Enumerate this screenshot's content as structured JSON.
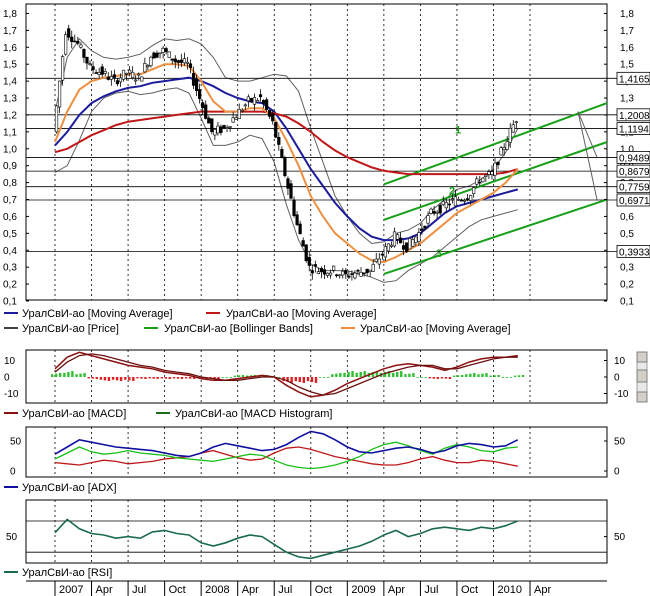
{
  "colors": {
    "price": "#000000",
    "ma_blue": "#1c1c9c",
    "ma_red": "#c01818",
    "ma_orange": "#ee9040",
    "bollinger": "#606060",
    "channel": "#18a018",
    "macd": "#8b1010",
    "macd_hist_pos": "#30c030",
    "macd_hist_neg": "#e02020",
    "adx": "#1010a0",
    "di_plus": "#18c018",
    "di_minus": "#c01818",
    "rsi": "#1a6b4a"
  },
  "x_axis": {
    "labels": [
      "2007",
      "Apr",
      "Jul",
      "Oct",
      "2008",
      "Apr",
      "Jul",
      "Oct",
      "2009",
      "Apr",
      "Jul",
      "Oct",
      "2010",
      "Apr"
    ]
  },
  "channel_labels": [
    "1",
    "2",
    "3"
  ],
  "panels": {
    "price": {
      "y_ticks": [
        "1,8",
        "1,7",
        "1,6",
        "1,5",
        "1,4",
        "1,3",
        "1,2",
        "1,1",
        "1,0",
        "0,9",
        "0,8",
        "0,7",
        "0,6",
        "0,5",
        "0,4",
        "0,3",
        "0,2",
        "0,1"
      ],
      "boxed_levels": [
        "1,4165",
        "1,2008",
        "1,1194",
        "0,9489",
        "0,8679",
        "0,7759",
        "0,6971",
        "0,3933"
      ],
      "legend": [
        {
          "label": "УралСвИ-ао [Moving Average]",
          "color": "#1c1c9c"
        },
        {
          "label": "УралСвИ-ао [Moving Average]",
          "color": "#c01818"
        },
        {
          "label": "УралСвИ-ао [Price]",
          "color": "#000000"
        },
        {
          "label": "УралСвИ-ао [Bollinger Bands]",
          "color": "#18a018"
        },
        {
          "label": "УралСвИ-ао [Moving Average]",
          "color": "#ee9040"
        }
      ]
    },
    "macd": {
      "y_ticks": [
        "10",
        "0",
        "-10"
      ],
      "legend": [
        {
          "label": "УралСвИ-ао [MACD]",
          "color": "#8b1010"
        },
        {
          "label": "УралСвИ-ао [MACD Histogram]",
          "color": "#1a6b1a"
        }
      ]
    },
    "adx": {
      "y_ticks": [
        "50",
        "0"
      ],
      "legend": [
        {
          "label": "УралСвИ-ао [ADX]",
          "color": "#1010a0"
        }
      ]
    },
    "rsi": {
      "y_ticks": [
        "50"
      ],
      "legend": [
        {
          "label": "УралСвИ-ао [RSI]",
          "color": "#1a6b4a"
        }
      ]
    }
  },
  "chart_data": {
    "type": "line",
    "x": [
      "2007-01",
      "2007-02",
      "2007-03",
      "2007-04",
      "2007-05",
      "2007-06",
      "2007-07",
      "2007-08",
      "2007-09",
      "2007-10",
      "2007-11",
      "2007-12",
      "2008-01",
      "2008-02",
      "2008-03",
      "2008-04",
      "2008-05",
      "2008-06",
      "2008-07",
      "2008-08",
      "2008-09",
      "2008-10",
      "2008-11",
      "2008-12",
      "2009-01",
      "2009-02",
      "2009-03",
      "2009-04",
      "2009-05",
      "2009-06",
      "2009-07",
      "2009-08",
      "2009-09",
      "2009-10",
      "2009-11",
      "2009-12",
      "2010-01",
      "2010-02",
      "2010-03"
    ],
    "series": [
      {
        "name": "УралСвИ-ао [Price]",
        "values": [
          1.1,
          1.7,
          1.62,
          1.48,
          1.45,
          1.4,
          1.45,
          1.42,
          1.55,
          1.58,
          1.52,
          1.5,
          1.3,
          1.1,
          1.12,
          1.2,
          1.28,
          1.3,
          1.15,
          0.85,
          0.55,
          0.3,
          0.28,
          0.28,
          0.25,
          0.27,
          0.28,
          0.38,
          0.48,
          0.42,
          0.5,
          0.62,
          0.66,
          0.7,
          0.72,
          0.82,
          0.85,
          1.02,
          1.18
        ]
      },
      {
        "name": "УралСвИ-ао [Moving Average]",
        "values": [
          1.02,
          1.1,
          1.2,
          1.27,
          1.31,
          1.34,
          1.36,
          1.37,
          1.39,
          1.4,
          1.41,
          1.42,
          1.4,
          1.37,
          1.33,
          1.3,
          1.28,
          1.27,
          1.22,
          1.12,
          1.0,
          0.88,
          0.78,
          0.68,
          0.6,
          0.53,
          0.48,
          0.46,
          0.46,
          0.47,
          0.5,
          0.56,
          0.62,
          0.66,
          0.68,
          0.7,
          0.72,
          0.74,
          0.76
        ]
      },
      {
        "name": "УралСвИ-ао [Moving Average]",
        "values": [
          0.98,
          1.0,
          1.04,
          1.08,
          1.11,
          1.14,
          1.16,
          1.17,
          1.18,
          1.19,
          1.2,
          1.21,
          1.22,
          1.22,
          1.22,
          1.22,
          1.22,
          1.22,
          1.21,
          1.19,
          1.15,
          1.1,
          1.04,
          0.99,
          0.95,
          0.92,
          0.89,
          0.87,
          0.86,
          0.85,
          0.85,
          0.85,
          0.85,
          0.85,
          0.85,
          0.85,
          0.85,
          0.86,
          0.88
        ]
      },
      {
        "name": "УралСвИ-ао [Moving Average]",
        "values": [
          1.04,
          1.22,
          1.35,
          1.4,
          1.42,
          1.43,
          1.44,
          1.44,
          1.47,
          1.5,
          1.5,
          1.49,
          1.4,
          1.28,
          1.22,
          1.22,
          1.24,
          1.24,
          1.18,
          1.05,
          0.9,
          0.72,
          0.6,
          0.5,
          0.44,
          0.38,
          0.34,
          0.33,
          0.36,
          0.4,
          0.44,
          0.5,
          0.56,
          0.62,
          0.66,
          0.7,
          0.74,
          0.8,
          0.88
        ]
      }
    ],
    "ylim": [
      0.1,
      1.85
    ]
  }
}
